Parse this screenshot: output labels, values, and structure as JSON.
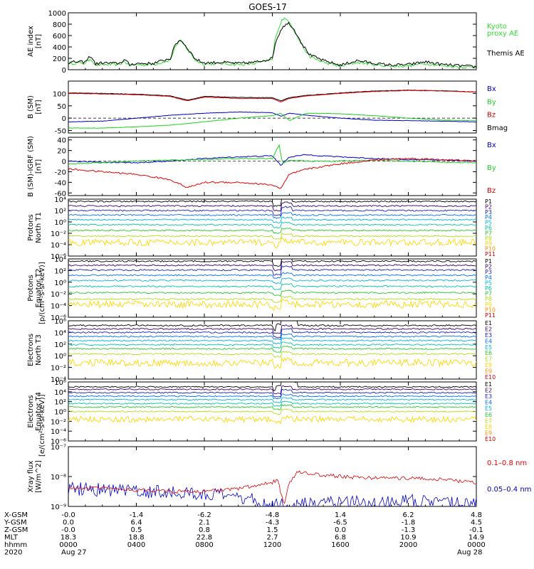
{
  "title": "GOES-17",
  "colors": {
    "black": "#000000",
    "red": "#e00000",
    "green": "#1fd21f",
    "blue": "#0000c8",
    "ae_green": "#33dd33",
    "rainbow": [
      "#000000",
      "#3a0070",
      "#1e1ec8",
      "#0070ff",
      "#00b4e6",
      "#00c8a0",
      "#28c828",
      "#b4dc14",
      "#ffd700",
      "#ff8c00",
      "#d20000"
    ]
  },
  "panels": [
    {
      "id": "ae",
      "ylabel": [
        "AE index",
        "[nT]"
      ],
      "yscale": "linear",
      "ylim": [
        0,
        1000
      ],
      "ticks": [
        {
          "v": 0,
          "t": "0"
        },
        {
          "v": 200,
          "t": "200"
        },
        {
          "v": 400,
          "t": "400"
        },
        {
          "v": 600,
          "t": "600"
        },
        {
          "v": 800,
          "t": "800"
        },
        {
          "v": 1000,
          "t": "1000"
        }
      ],
      "legend": [
        {
          "text": "Kyoto",
          "color": "#33dd33"
        },
        {
          "text": "proxy AE",
          "color": "#33dd33"
        },
        {
          "text": "Themis AE",
          "color": "#000000"
        }
      ]
    },
    {
      "id": "bsm",
      "ylabel": [
        "B (SM)",
        "[nT]"
      ],
      "yscale": "linear",
      "ylim": [
        -60,
        150
      ],
      "ticks": [
        {
          "v": -50,
          "t": "-50"
        },
        {
          "v": 0,
          "t": "0"
        },
        {
          "v": 50,
          "t": "50"
        },
        {
          "v": 100,
          "t": "100"
        }
      ],
      "legend": [
        {
          "text": "Bx",
          "color": "#0000c8"
        },
        {
          "text": "By",
          "color": "#1fd21f"
        },
        {
          "text": "Bz",
          "color": "#e00000"
        },
        {
          "text": "Bmag",
          "color": "#000000"
        }
      ]
    },
    {
      "id": "bigrf",
      "ylabel": [
        "B (SM)-IGRF (SM)",
        "[nT]"
      ],
      "yscale": "linear",
      "ylim": [
        -65,
        45
      ],
      "ticks": [
        {
          "v": -60,
          "t": "-60"
        },
        {
          "v": -40,
          "t": "-40"
        },
        {
          "v": -20,
          "t": "-20"
        },
        {
          "v": 0,
          "t": "0"
        },
        {
          "v": 20,
          "t": "20"
        },
        {
          "v": 40,
          "t": "40"
        }
      ],
      "legend": [
        {
          "text": "Bx",
          "color": "#0000c8"
        },
        {
          "text": "By",
          "color": "#1fd21f"
        },
        {
          "text": "Bz",
          "color": "#e00000"
        }
      ]
    },
    {
      "id": "pn",
      "ylabel": [
        "Protons",
        "North T1"
      ],
      "yscale": "log",
      "ylim": [
        -6,
        4
      ],
      "ticks": [
        {
          "v": 4,
          "t": "10⁴"
        },
        {
          "v": 2,
          "t": "10²"
        },
        {
          "v": 0,
          "t": "10⁰"
        },
        {
          "v": -2,
          "t": "10⁻²"
        },
        {
          "v": -4,
          "t": "10⁻⁴"
        },
        {
          "v": -6,
          "t": "10⁻⁶"
        }
      ],
      "legend": [
        "P1",
        "P2",
        "P3",
        "P4",
        "P5",
        "P6",
        "P7",
        "P8",
        "P9",
        "P10",
        "P11"
      ]
    },
    {
      "id": "pe",
      "ylabel": [
        "Protons",
        "Equator T2"
      ],
      "yscale": "log",
      "ylim": [
        -6,
        4
      ],
      "ticks": [
        {
          "v": 4,
          "t": "10⁴"
        },
        {
          "v": 2,
          "t": "10²"
        },
        {
          "v": 0,
          "t": "10⁰"
        },
        {
          "v": -2,
          "t": "10⁻²"
        },
        {
          "v": -4,
          "t": "10⁻⁴"
        },
        {
          "v": -6,
          "t": "10⁻⁶"
        }
      ],
      "legend": [
        "P1",
        "P2",
        "P3",
        "P4",
        "P5",
        "P6",
        "P7",
        "P8",
        "P9",
        "P10",
        "P11"
      ]
    },
    {
      "id": "en",
      "ylabel": [
        "Electrons",
        "North T3"
      ],
      "yscale": "log",
      "ylim": [
        -4,
        6
      ],
      "ticks": [
        {
          "v": 6,
          "t": "10⁶"
        },
        {
          "v": 4,
          "t": "10⁴"
        },
        {
          "v": 2,
          "t": "10²"
        },
        {
          "v": 0,
          "t": "10⁰"
        },
        {
          "v": -2,
          "t": "10⁻²"
        },
        {
          "v": -4,
          "t": "10⁻⁴"
        }
      ],
      "legend": [
        "E1",
        "E2",
        "E3",
        "E4",
        "E5",
        "E6",
        "E7",
        "E8",
        "E9",
        "E10"
      ]
    },
    {
      "id": "ee",
      "ylabel": [
        "Electrons",
        "Equator T4"
      ],
      "yscale": "log",
      "ylim": [
        -6,
        6
      ],
      "ticks": [
        {
          "v": 6,
          "t": "10⁶"
        },
        {
          "v": 4,
          "t": "10⁴"
        },
        {
          "v": 2,
          "t": "10²"
        },
        {
          "v": 0,
          "t": "10⁰"
        },
        {
          "v": -2,
          "t": "10⁻²"
        },
        {
          "v": -4,
          "t": "10⁻⁴"
        },
        {
          "v": -6,
          "t": "10⁻⁶"
        }
      ],
      "legend": [
        "E1",
        "E2",
        "E3",
        "E4",
        "E5",
        "E6",
        "E7",
        "E8",
        "E9",
        "E10"
      ]
    },
    {
      "id": "xray",
      "ylabel": [
        "Xray flux",
        "[W/m^2]"
      ],
      "yscale": "log",
      "ylim": [
        -9,
        -7
      ],
      "ticks": [
        {
          "v": -7,
          "t": "10⁻⁷"
        },
        {
          "v": -8,
          "t": "10⁻⁸"
        },
        {
          "v": -9,
          "t": "10⁻⁹"
        }
      ],
      "legend": [
        {
          "text": "0.1–0.8 nm",
          "color": "#e00000"
        },
        {
          "text": "0.05–0.4 nm",
          "color": "#0000c8"
        }
      ]
    }
  ],
  "side_units": {
    "protons": "[p/(cm²-s-sr-keV)]",
    "electrons": "[e/(cm²-s-sr-keV)]"
  },
  "orbit_table": {
    "row_labels": [
      "X-GSM",
      "Y-GSM",
      "Z-GSM",
      "MLT",
      "hhmm",
      "2020"
    ],
    "columns": [
      [
        "-0.0",
        "0.0",
        "-0.0",
        "18.3",
        "0000",
        "Aug 27"
      ],
      [
        "-1.4",
        "6.4",
        "0.5",
        "18.8",
        "0400",
        ""
      ],
      [
        "-6.2",
        "2.1",
        "0.8",
        "22.8",
        "0800",
        ""
      ],
      [
        "-4.8",
        "-4.3",
        "1.5",
        "2.7",
        "1200",
        ""
      ],
      [
        "1.4",
        "-6.5",
        "0.0",
        "6.8",
        "1600",
        ""
      ],
      [
        "6.2",
        "-1.8",
        "-1.3",
        "10.9",
        "2000",
        ""
      ],
      [
        "4.8",
        "4.5",
        "-0.1",
        "14.9",
        "0000",
        "Aug 28"
      ]
    ]
  },
  "chart_data": {
    "type": "line",
    "title": "GOES-17",
    "x_unit": "hours since 2020-08-27 00:00 UT",
    "xlim": [
      0,
      24
    ],
    "x_ticks": [
      0,
      4,
      8,
      12,
      16,
      20,
      24
    ],
    "ae": {
      "themis": {
        "x": [
          0,
          0.5,
          1,
          1.3,
          1.6,
          2,
          3,
          3.3,
          3.6,
          4,
          5,
          6,
          6.3,
          6.6,
          7,
          7.5,
          8,
          9,
          10,
          11,
          12,
          12.2,
          12.6,
          13,
          13.4,
          13.8,
          14.2,
          15,
          16,
          17,
          18,
          19,
          20,
          21,
          22,
          23,
          24
        ],
        "y": [
          120,
          140,
          130,
          250,
          100,
          120,
          110,
          180,
          90,
          110,
          110,
          200,
          450,
          530,
          380,
          180,
          120,
          130,
          110,
          130,
          200,
          500,
          760,
          820,
          650,
          430,
          260,
          160,
          80,
          160,
          110,
          80,
          90,
          140,
          90,
          70,
          50
        ]
      },
      "kyoto_proxy": {
        "x": [
          0,
          0.5,
          1,
          1.3,
          1.6,
          2,
          3,
          3.3,
          3.6,
          4,
          5,
          6,
          6.3,
          6.6,
          7,
          7.5,
          8,
          9,
          10,
          11,
          12,
          12.2,
          12.6,
          13,
          13.4,
          13.8,
          14.2,
          15,
          16,
          17,
          18,
          19,
          20,
          21,
          22,
          23,
          24
        ],
        "y": [
          110,
          120,
          110,
          200,
          80,
          90,
          90,
          150,
          70,
          90,
          90,
          170,
          420,
          510,
          360,
          160,
          100,
          110,
          90,
          110,
          180,
          600,
          900,
          860,
          620,
          400,
          230,
          130,
          60,
          130,
          90,
          60,
          70,
          110,
          70,
          50,
          40
        ]
      }
    },
    "b_sm": {
      "bx": {
        "x": [
          0,
          2,
          4,
          6,
          8,
          10,
          12,
          12.5,
          13,
          14,
          16,
          18,
          20,
          22,
          24
        ],
        "y": [
          -15,
          -12,
          0,
          12,
          20,
          25,
          22,
          8,
          20,
          12,
          0,
          -8,
          -10,
          -12,
          -15
        ]
      },
      "by": {
        "x": [
          0,
          2,
          4,
          6,
          8,
          10,
          12,
          12.5,
          13,
          14,
          16,
          18,
          20,
          22,
          24
        ],
        "y": [
          -40,
          -40,
          -35,
          -28,
          -15,
          0,
          10,
          20,
          -10,
          20,
          18,
          10,
          0,
          -8,
          -10
        ]
      },
      "bz": {
        "x": [
          0,
          2,
          4,
          6,
          7,
          8,
          10,
          12,
          12.5,
          13,
          14,
          16,
          18,
          20,
          22,
          24
        ],
        "y": [
          100,
          98,
          95,
          88,
          70,
          85,
          80,
          80,
          65,
          80,
          90,
          100,
          108,
          112,
          110,
          105
        ]
      },
      "bmag": {
        "x": [
          0,
          2,
          4,
          6,
          7,
          8,
          10,
          12,
          12.5,
          13,
          14,
          16,
          18,
          20,
          22,
          24
        ],
        "y": [
          102,
          100,
          97,
          90,
          73,
          88,
          84,
          83,
          70,
          83,
          92,
          102,
          110,
          113,
          111,
          106
        ]
      }
    },
    "b_minus_igrf": {
      "bx": {
        "x": [
          0,
          2,
          4,
          6,
          8,
          10,
          12,
          12.5,
          13,
          14,
          16,
          18,
          20,
          22,
          24
        ],
        "y": [
          0,
          -2,
          -3,
          0,
          5,
          8,
          10,
          -8,
          8,
          12,
          8,
          5,
          3,
          2,
          0
        ]
      },
      "by": {
        "x": [
          0,
          2,
          4,
          6,
          8,
          10,
          12,
          12.4,
          12.6,
          13,
          14,
          16,
          18,
          20,
          22,
          24
        ],
        "y": [
          -5,
          -3,
          0,
          2,
          3,
          5,
          5,
          30,
          -5,
          2,
          0,
          0,
          2,
          0,
          -2,
          -3
        ]
      },
      "bz": {
        "x": [
          0,
          2,
          4,
          6,
          7,
          8,
          10,
          12,
          12.5,
          13,
          14,
          16,
          18,
          20,
          22,
          24
        ],
        "y": [
          -15,
          -20,
          -25,
          -35,
          -50,
          -40,
          -40,
          -45,
          -52,
          -25,
          -15,
          -5,
          2,
          5,
          3,
          0
        ]
      }
    },
    "protons_north_log10": [
      {
        "name": "P1",
        "level": 3.6
      },
      {
        "name": "P2",
        "level": 2.8
      },
      {
        "name": "P3",
        "level": 2.0
      },
      {
        "name": "P4",
        "level": 1.2
      },
      {
        "name": "P5",
        "level": 0.4
      },
      {
        "name": "P6",
        "level": -0.5
      },
      {
        "name": "P7",
        "level": -1.5
      },
      {
        "name": "P8",
        "level": -2.5
      },
      {
        "name": "P9",
        "level": -3.6
      }
    ],
    "protons_equator_log10": [
      {
        "name": "P1",
        "level": 3.6
      },
      {
        "name": "P2",
        "level": 2.9
      },
      {
        "name": "P3",
        "level": 2.1
      },
      {
        "name": "P4",
        "level": 1.2
      },
      {
        "name": "P5",
        "level": 0.3
      },
      {
        "name": "P6",
        "level": -0.7
      },
      {
        "name": "P7",
        "level": -1.8
      },
      {
        "name": "P8",
        "level": -2.9
      },
      {
        "name": "P9",
        "level": -3.8
      }
    ],
    "electrons_north_log10": [
      {
        "name": "E1",
        "level": 5.2
      },
      {
        "name": "E2",
        "level": 4.6
      },
      {
        "name": "E3",
        "level": 4.0
      },
      {
        "name": "E4",
        "level": 3.3
      },
      {
        "name": "E5",
        "level": 2.6
      },
      {
        "name": "E6",
        "level": 1.9
      },
      {
        "name": "E7",
        "level": 1.2
      },
      {
        "name": "E8",
        "level": 0.3
      },
      {
        "name": "E9",
        "level": -1.2
      }
    ],
    "electrons_equator_log10": [
      {
        "name": "E1",
        "level": 5.0
      },
      {
        "name": "E2",
        "level": 4.5
      },
      {
        "name": "E3",
        "level": 3.8
      },
      {
        "name": "E4",
        "level": 3.1
      },
      {
        "name": "E5",
        "level": 2.4
      },
      {
        "name": "E6",
        "level": 1.6
      },
      {
        "name": "E7",
        "level": 0.9
      },
      {
        "name": "E8",
        "level": 0.0
      },
      {
        "name": "E9",
        "level": -1.6
      }
    ],
    "xray_log10": {
      "long_0.1_0.8nm": {
        "x": [
          0,
          2,
          4,
          6,
          8,
          10,
          11,
          12,
          12.3,
          12.7,
          13,
          13.5,
          14,
          15,
          16,
          18,
          20,
          22,
          24
        ],
        "y": [
          -8.4,
          -8.4,
          -8.45,
          -8.5,
          -8.5,
          -8.4,
          -8.3,
          -8.2,
          -8.1,
          -9.0,
          -8.2,
          -7.85,
          -7.9,
          -7.95,
          -8.0,
          -8.05,
          -8.05,
          -8.1,
          -8.2
        ]
      },
      "short_0.05_0.4nm": {
        "x": [
          0,
          2,
          4,
          6,
          8,
          10,
          11,
          12,
          12.3,
          12.7,
          13,
          14,
          16,
          18,
          20,
          22,
          24
        ],
        "y": [
          -8.4,
          -8.45,
          -8.5,
          -8.5,
          -8.6,
          -8.7,
          -8.8,
          -9.0,
          -8.8,
          -9.0,
          -9.0,
          -8.9,
          -8.8,
          -8.9,
          -8.8,
          -8.9,
          -8.9
        ]
      }
    }
  }
}
